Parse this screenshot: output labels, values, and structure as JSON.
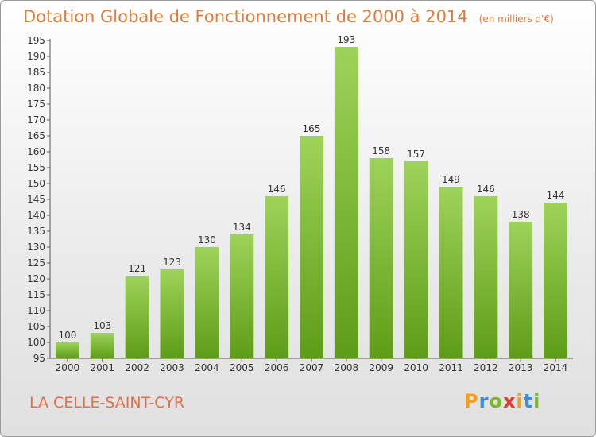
{
  "title": "Dotation Globale de Fonctionnement de 2000 à 2014",
  "unit": "(en milliers d'€)",
  "commune": "LA CELLE-SAINT-CYR",
  "logo": {
    "text": "Proxiti",
    "letters": [
      "P",
      "r",
      "o",
      "x",
      "i",
      "t",
      "i"
    ],
    "colors": [
      "#f0a020",
      "#3a8fd8",
      "#7ab828",
      "#e03a2a",
      "#f0a020",
      "#3a8fd8",
      "#7ab828"
    ]
  },
  "colors": {
    "bar_top": "#9ed35a",
    "bar_bottom": "#5e9c18",
    "title": "#e07a3a"
  },
  "chart_data": {
    "type": "bar",
    "categories": [
      "2000",
      "2001",
      "2002",
      "2003",
      "2004",
      "2005",
      "2006",
      "2007",
      "2008",
      "2009",
      "2010",
      "2011",
      "2012",
      "2013",
      "2014"
    ],
    "values": [
      100,
      103,
      121,
      123,
      130,
      134,
      146,
      165,
      193,
      158,
      157,
      149,
      146,
      138,
      144
    ],
    "ylim": [
      95,
      195
    ],
    "yticks": [
      95,
      100,
      105,
      110,
      115,
      120,
      125,
      130,
      135,
      140,
      145,
      150,
      155,
      160,
      165,
      170,
      175,
      180,
      185,
      190,
      195
    ],
    "grid": false
  }
}
